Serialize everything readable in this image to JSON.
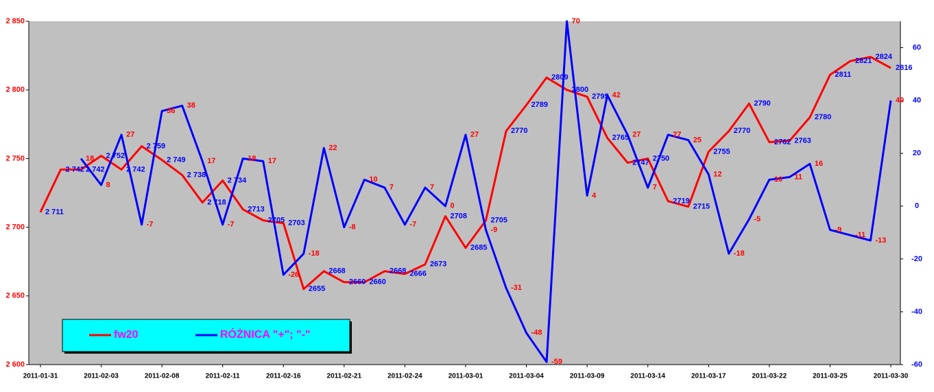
{
  "chart_data": {
    "type": "line",
    "categories": [
      "2011-01-31",
      null,
      null,
      "2011-02-03",
      null,
      null,
      "2011-02-08",
      null,
      null,
      "2011-02-11",
      null,
      null,
      "2011-02-16",
      null,
      null,
      "2011-02-21",
      null,
      null,
      "2011-02-24",
      null,
      null,
      "2011-03-01",
      null,
      null,
      "2011-03-04",
      null,
      null,
      "2011-03-09",
      null,
      null,
      "2011-03-14",
      null,
      null,
      "2011-03-17",
      null,
      null,
      "2011-03-22",
      null,
      null,
      "2011-03-25",
      null,
      null,
      "2011-03-30"
    ],
    "series": [
      {
        "name": "fw20",
        "color": "#ff0000",
        "label_color": "#0000ff",
        "values": [
          2711,
          2742,
          2742,
          2752,
          2742,
          2759,
          2749,
          2738,
          2718,
          2734,
          2713,
          2705,
          2703,
          2655,
          2668,
          2660,
          2660,
          2668,
          2666,
          2673,
          2708,
          2685,
          2705,
          2770,
          2789,
          2809,
          2800,
          2795,
          2765,
          2747,
          2750,
          2719,
          2715,
          2755,
          2770,
          2790,
          2762,
          2763,
          2780,
          2811,
          2821,
          2824,
          2816
        ],
        "value_labels": [
          "2 711",
          "2 742",
          "2 742",
          "2 752",
          "2 742",
          "2 759",
          "2 749",
          "2 738",
          "2 718",
          "2 734",
          "2713",
          "2705",
          "2703",
          "2655",
          "2668",
          "2660",
          "2660",
          "2668",
          "2666",
          "2673",
          "2708",
          "2685",
          "2705",
          "2770",
          "2789",
          "2809",
          "2800",
          "2795",
          "2765",
          "2747",
          "2750",
          "2719",
          "2715",
          "2755",
          "2770",
          "2790",
          "2762",
          "2763",
          "2780",
          "2811",
          "2821",
          "2824",
          "2816"
        ]
      },
      {
        "name": "RÓŻNICA \"+\"; \"-\"",
        "color": "#0000ff",
        "label_color": "#ff0000",
        "axis": "y2",
        "values": [
          null,
          null,
          18,
          8,
          27,
          -7,
          36,
          38,
          17,
          -7,
          18,
          17,
          -26,
          -18,
          22,
          -8,
          10,
          7,
          -7,
          7,
          0,
          27,
          -9,
          -31,
          -48,
          -59,
          70,
          4,
          42,
          27,
          7,
          27,
          25,
          12,
          -18,
          -5,
          10,
          11,
          16,
          -9,
          -11,
          -13,
          40
        ]
      }
    ],
    "ylim": [
      2600,
      2850
    ],
    "yticks": [
      {
        "value": 2600,
        "label": "2 600"
      },
      {
        "value": 2650,
        "label": "2 650"
      },
      {
        "value": 2700,
        "label": "2 700"
      },
      {
        "value": 2750,
        "label": "2 750"
      },
      {
        "value": 2800,
        "label": "2 800"
      },
      {
        "value": 2850,
        "label": "2 850"
      }
    ],
    "y2lim": [
      -60,
      70
    ],
    "y2ticks": [
      -60,
      -40,
      -20,
      0,
      20,
      40,
      60
    ],
    "ytick_color": "#ff0000",
    "y2tick_color": "#0000ff",
    "plot_background": "#c0c0c0",
    "legend_background": "#00ffff",
    "legend_text_color": "#ff00ff"
  }
}
